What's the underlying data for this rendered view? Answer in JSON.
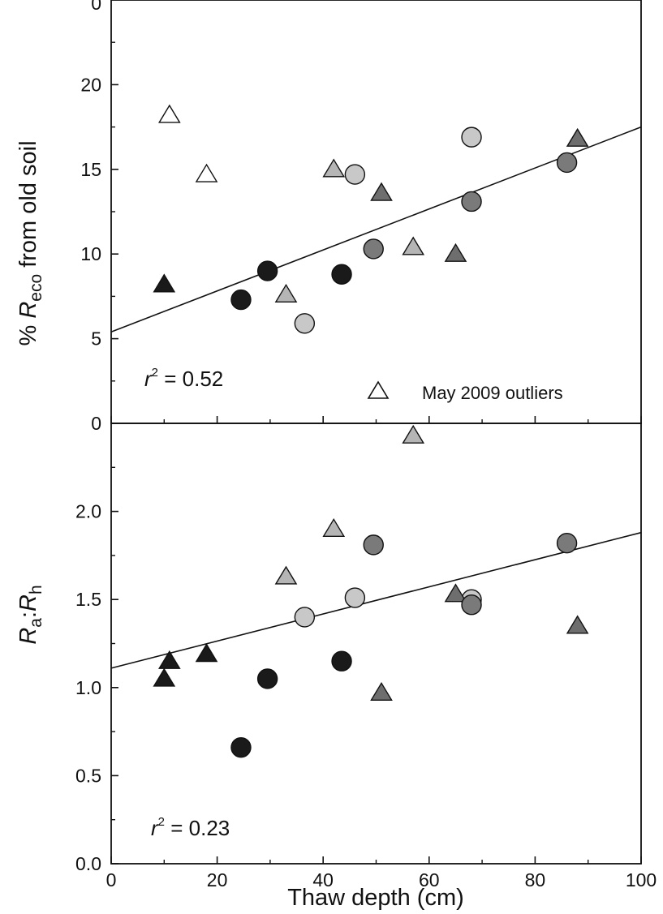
{
  "chart_data": [
    {
      "type": "scatter",
      "panel": "top",
      "ylabel": "% R_eco from old soil",
      "ylabel_parts": {
        "prefix": "% ",
        "main": "R",
        "sub": "eco",
        "suffix": " from old soil"
      },
      "ylim": [
        0,
        25
      ],
      "yticks": [
        "0",
        "5",
        "10",
        "15",
        "20"
      ],
      "ytick_values": [
        0,
        5,
        10,
        15,
        20
      ],
      "top_clipped_tick": "0",
      "r2_label": {
        "r": "r",
        "sup": "2",
        "rest": " = 0.52"
      },
      "legend": {
        "label": "May 2009 outliers",
        "marker": "triangle",
        "fill": "#ffffff",
        "placement": "bottom-right"
      },
      "regression": {
        "x": [
          0,
          100
        ],
        "y": [
          5.4,
          17.5
        ]
      },
      "points": [
        {
          "shape": "triangle",
          "fill": "#ffffff",
          "x": 11,
          "y": 18.2
        },
        {
          "shape": "triangle",
          "fill": "#ffffff",
          "x": 18,
          "y": 14.7
        },
        {
          "shape": "triangle",
          "fill": "#1a1a1a",
          "x": 10,
          "y": 8.2
        },
        {
          "shape": "circle",
          "fill": "#1a1a1a",
          "x": 24.5,
          "y": 7.3
        },
        {
          "shape": "circle",
          "fill": "#1a1a1a",
          "x": 29.5,
          "y": 9.0
        },
        {
          "shape": "circle",
          "fill": "#1a1a1a",
          "x": 43.5,
          "y": 8.8
        },
        {
          "shape": "triangle",
          "fill": "#b5b5b5",
          "x": 33,
          "y": 7.6
        },
        {
          "shape": "circle",
          "fill": "#c8c8c8",
          "x": 36.5,
          "y": 5.9
        },
        {
          "shape": "triangle",
          "fill": "#b5b5b5",
          "x": 42,
          "y": 15.0
        },
        {
          "shape": "circle",
          "fill": "#c8c8c8",
          "x": 46,
          "y": 14.7
        },
        {
          "shape": "triangle",
          "fill": "#b5b5b5",
          "x": 57,
          "y": 10.4
        },
        {
          "shape": "circle",
          "fill": "#c8c8c8",
          "x": 68,
          "y": 16.9
        },
        {
          "shape": "circle",
          "fill": "#7a7a7a",
          "x": 49.5,
          "y": 10.3
        },
        {
          "shape": "triangle",
          "fill": "#6e6e6e",
          "x": 51,
          "y": 13.6
        },
        {
          "shape": "triangle",
          "fill": "#6e6e6e",
          "x": 65,
          "y": 10.0
        },
        {
          "shape": "circle",
          "fill": "#7a7a7a",
          "x": 68,
          "y": 13.1
        },
        {
          "shape": "circle",
          "fill": "#7a7a7a",
          "x": 86,
          "y": 15.4
        },
        {
          "shape": "triangle",
          "fill": "#6e6e6e",
          "x": 88,
          "y": 16.8
        }
      ]
    },
    {
      "type": "scatter",
      "panel": "bottom",
      "xlabel": "Thaw depth (cm)",
      "xlim": [
        0,
        100
      ],
      "xticks": [
        "0",
        "20",
        "40",
        "60",
        "80",
        "100"
      ],
      "xtick_values": [
        0,
        20,
        40,
        60,
        80,
        100
      ],
      "ylabel": "R_a:R_h",
      "ylabel_parts": {
        "a": "R",
        "a_sub": "a",
        "sep": ":",
        "b": "R",
        "b_sub": "h"
      },
      "ylim": [
        0,
        2.5
      ],
      "yticks": [
        "0.0",
        "0.5",
        "1.0",
        "1.5",
        "2.0"
      ],
      "ytick_values": [
        0,
        0.5,
        1.0,
        1.5,
        2.0
      ],
      "r2_label": {
        "r": "r",
        "sup": "2",
        "rest": " = 0.23"
      },
      "regression": {
        "x": [
          0,
          100
        ],
        "y": [
          1.11,
          1.88
        ]
      },
      "points": [
        {
          "shape": "triangle",
          "fill": "#1a1a1a",
          "x": 10,
          "y": 1.05
        },
        {
          "shape": "triangle",
          "fill": "#1a1a1a",
          "x": 11,
          "y": 1.15
        },
        {
          "shape": "triangle",
          "fill": "#1a1a1a",
          "x": 18,
          "y": 1.19
        },
        {
          "shape": "circle",
          "fill": "#1a1a1a",
          "x": 24.5,
          "y": 0.66
        },
        {
          "shape": "circle",
          "fill": "#1a1a1a",
          "x": 29.5,
          "y": 1.05
        },
        {
          "shape": "circle",
          "fill": "#1a1a1a",
          "x": 43.5,
          "y": 1.15
        },
        {
          "shape": "triangle",
          "fill": "#b5b5b5",
          "x": 33,
          "y": 1.63
        },
        {
          "shape": "circle",
          "fill": "#c8c8c8",
          "x": 36.5,
          "y": 1.4
        },
        {
          "shape": "triangle",
          "fill": "#b5b5b5",
          "x": 42,
          "y": 1.9
        },
        {
          "shape": "circle",
          "fill": "#c8c8c8",
          "x": 46,
          "y": 1.51
        },
        {
          "shape": "triangle",
          "fill": "#b5b5b5",
          "x": 57,
          "y": 2.43
        },
        {
          "shape": "circle",
          "fill": "#c8c8c8",
          "x": 68,
          "y": 1.5
        },
        {
          "shape": "circle",
          "fill": "#7a7a7a",
          "x": 49.5,
          "y": 1.81
        },
        {
          "shape": "triangle",
          "fill": "#6e6e6e",
          "x": 51,
          "y": 0.97
        },
        {
          "shape": "triangle",
          "fill": "#6e6e6e",
          "x": 65,
          "y": 1.53
        },
        {
          "shape": "circle",
          "fill": "#7a7a7a",
          "x": 68,
          "y": 1.47
        },
        {
          "shape": "circle",
          "fill": "#7a7a7a",
          "x": 86,
          "y": 1.82
        },
        {
          "shape": "triangle",
          "fill": "#6e6e6e",
          "x": 88,
          "y": 1.35
        }
      ]
    }
  ]
}
